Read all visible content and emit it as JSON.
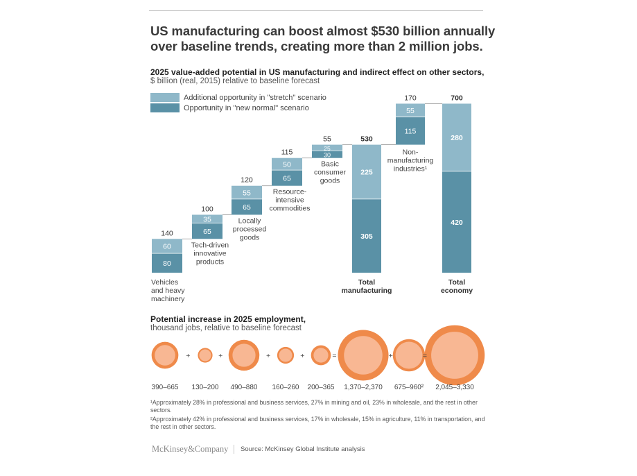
{
  "headline": {
    "line1": "US manufacturing can boost almost $530 billion annually",
    "line2": "over baseline trends, creating more than 2 million jobs."
  },
  "value_chart": {
    "title": "2025 value-added potential in US manufacturing and indirect effect on other sectors,",
    "subtitle": "$ billion (real, 2015) relative to baseline forecast",
    "legend": [
      {
        "label": "Additional opportunity in \"stretch\" scenario",
        "color": "#8fb8c9"
      },
      {
        "label": "Opportunity in \"new normal\" scenario",
        "color": "#5a91a6"
      }
    ]
  },
  "employment": {
    "title": "Potential increase in 2025 employment,",
    "subtitle": "thousand jobs, relative to baseline forecast"
  },
  "chart_data": [
    {
      "type": "bar",
      "subtype": "waterfall",
      "title": "2025 value-added potential in US manufacturing and indirect effect on other sectors,",
      "ylabel": "$ billion (real, 2015) relative to baseline forecast",
      "colors": {
        "stretch": "#8fb8c9",
        "new_normal": "#5a91a6"
      },
      "categories": [
        {
          "lines": [
            "Vehicles",
            "and heavy",
            "machinery"
          ],
          "new_normal": 80,
          "stretch": 60,
          "total": 140,
          "base": 0,
          "kind": "step"
        },
        {
          "lines": [
            "Tech-driven",
            "innovative",
            "products"
          ],
          "new_normal": 65,
          "stretch": 35,
          "total": 100,
          "base": 140,
          "kind": "step"
        },
        {
          "lines": [
            "Locally",
            "processed",
            "goods"
          ],
          "new_normal": 65,
          "stretch": 55,
          "total": 120,
          "base": 240,
          "kind": "step"
        },
        {
          "lines": [
            "Resource-",
            "intensive",
            "commodities"
          ],
          "new_normal": 65,
          "stretch": 50,
          "total": 115,
          "base": 360,
          "kind": "step"
        },
        {
          "lines": [
            "Basic",
            "consumer",
            "goods"
          ],
          "new_normal": 30,
          "stretch": 25,
          "stretch_label": "25",
          "total": 55,
          "base": 475,
          "kind": "step"
        },
        {
          "lines": [
            "Total",
            "manufacturing"
          ],
          "new_normal": 305,
          "stretch": 225,
          "total": 530,
          "base": 0,
          "kind": "total"
        },
        {
          "lines": [
            "Non-",
            "manufacturing",
            "industries¹"
          ],
          "new_normal": 115,
          "stretch": 55,
          "total": 170,
          "base": 530,
          "kind": "step"
        },
        {
          "lines": [
            "Total",
            "economy"
          ],
          "new_normal": 420,
          "stretch": 280,
          "total": 700,
          "base": 0,
          "kind": "total"
        }
      ]
    },
    {
      "type": "bubble",
      "title": "Potential increase in 2025 employment,",
      "ylabel": "thousand jobs, relative to baseline forecast",
      "items": [
        {
          "label": "390–665",
          "low": 390,
          "high": 665
        },
        {
          "label": "130–200",
          "low": 130,
          "high": 200
        },
        {
          "label": "490–880",
          "low": 490,
          "high": 880
        },
        {
          "label": "160–260",
          "low": 160,
          "high": 260
        },
        {
          "label": "200–365",
          "low": 200,
          "high": 365
        },
        {
          "label": "1,370–2,370",
          "low": 1370,
          "high": 2370
        },
        {
          "label": "675–960²",
          "low": 675,
          "high": 960
        },
        {
          "label": "2,045–3,330",
          "low": 2045,
          "high": 3330
        }
      ],
      "operators": [
        "+",
        "+",
        "+",
        "+",
        "=",
        "+",
        "="
      ],
      "colors": {
        "outer": "#ef8a4a",
        "inner": "#f8b793"
      }
    }
  ],
  "footnotes": [
    "¹Approximately 28% in professional and business services, 27% in mining and oil, 23% in wholesale, and the rest in other sectors.",
    "²Approximately 42% in professional and business services, 17% in wholesale, 15% in agriculture, 11% in transportation, and the rest in other sectors."
  ],
  "footer": {
    "brand": "McKinsey&Company",
    "source": "Source: McKinsey Global Institute analysis"
  }
}
